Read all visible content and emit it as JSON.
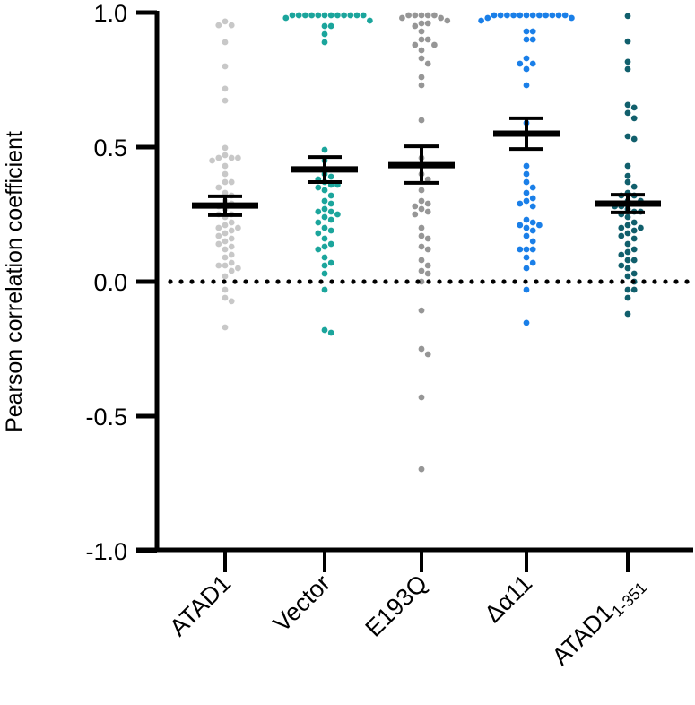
{
  "chart_data": {
    "type": "scatter",
    "subtype": "dot-plot-with-mean-and-error",
    "title": "",
    "xlabel": "",
    "ylabel": "Pearson correlation coefficient",
    "ylim": [
      -1.0,
      1.0
    ],
    "yticks": [
      -1.0,
      -0.5,
      0.0,
      0.5,
      1.0
    ],
    "ytick_labels": [
      "-1.0",
      "-0.5",
      "0.0",
      "0.5",
      "1.0"
    ],
    "reference_line": {
      "y": 0.0,
      "style": "dotted",
      "color": "#000000"
    },
    "grid": false,
    "legend": "none",
    "categories": [
      "ATAD1",
      "Vector",
      "E193Q",
      "Δα11",
      "ATAD1"
    ],
    "category_subscripts": [
      "",
      "",
      "",
      "",
      "1-351"
    ],
    "series": [
      {
        "name": "ATAD1",
        "color": "#c8c8c8",
        "mean": 0.283,
        "error": [
          0.247,
          0.317
        ],
        "values": [
          0.967,
          0.953,
          0.953,
          0.89,
          0.8,
          0.717,
          0.673,
          0.497,
          0.47,
          0.46,
          0.46,
          0.46,
          0.45,
          0.43,
          0.4,
          0.37,
          0.37,
          0.35,
          0.33,
          0.32,
          0.3,
          0.29,
          0.28,
          0.27,
          0.25,
          0.25,
          0.24,
          0.22,
          0.21,
          0.2,
          0.2,
          0.19,
          0.18,
          0.17,
          0.16,
          0.15,
          0.14,
          0.13,
          0.12,
          0.1,
          0.09,
          0.07,
          0.06,
          0.06,
          0.05,
          0.04,
          0.02,
          -0.03,
          -0.06,
          -0.073,
          -0.17
        ]
      },
      {
        "name": "Vector",
        "color": "#1ba59c",
        "mean": 0.417,
        "error": [
          0.37,
          0.463
        ],
        "values": [
          0.99,
          0.99,
          0.99,
          0.99,
          0.99,
          0.99,
          0.99,
          0.99,
          0.99,
          0.99,
          0.99,
          0.99,
          0.98,
          0.97,
          0.95,
          0.95,
          0.92,
          0.89,
          0.49,
          0.45,
          0.4,
          0.39,
          0.38,
          0.37,
          0.36,
          0.36,
          0.35,
          0.34,
          0.32,
          0.3,
          0.29,
          0.27,
          0.26,
          0.26,
          0.25,
          0.24,
          0.23,
          0.22,
          0.2,
          0.19,
          0.18,
          0.16,
          0.14,
          0.13,
          0.12,
          0.09,
          0.07,
          0.06,
          0.03,
          -0.03,
          -0.18,
          -0.19
        ]
      },
      {
        "name": "E193Q",
        "color": "#969696",
        "mean": 0.433,
        "error": [
          0.367,
          0.503
        ],
        "values": [
          0.99,
          0.99,
          0.99,
          0.99,
          0.99,
          0.98,
          0.98,
          0.97,
          0.96,
          0.96,
          0.95,
          0.93,
          0.9,
          0.9,
          0.88,
          0.88,
          0.86,
          0.83,
          0.81,
          0.76,
          0.73,
          0.6,
          0.46,
          0.4,
          0.38,
          0.34,
          0.3,
          0.29,
          0.28,
          0.27,
          0.26,
          0.25,
          0.2,
          0.17,
          0.16,
          0.13,
          0.12,
          0.08,
          0.06,
          0.04,
          0.03,
          0.0,
          -0.107,
          -0.25,
          -0.27,
          -0.43,
          -0.697
        ]
      },
      {
        "name": "Δα11",
        "color": "#1a7fe8",
        "mean": 0.55,
        "error": [
          0.493,
          0.607
        ],
        "values": [
          0.99,
          0.99,
          0.99,
          0.99,
          0.99,
          0.99,
          0.99,
          0.99,
          0.99,
          0.99,
          0.99,
          0.99,
          0.98,
          0.98,
          0.97,
          0.93,
          0.93,
          0.9,
          0.9,
          0.83,
          0.81,
          0.81,
          0.79,
          0.73,
          0.59,
          0.43,
          0.4,
          0.37,
          0.35,
          0.33,
          0.31,
          0.3,
          0.29,
          0.28,
          0.23,
          0.22,
          0.21,
          0.21,
          0.2,
          0.19,
          0.17,
          0.15,
          0.12,
          0.12,
          0.12,
          0.09,
          0.07,
          0.05,
          -0.03,
          -0.153
        ]
      },
      {
        "name": "ATAD1 1-351",
        "color": "#115f6c",
        "mean": 0.29,
        "error": [
          0.257,
          0.323
        ],
        "values": [
          0.987,
          0.893,
          0.817,
          0.79,
          0.657,
          0.647,
          0.627,
          0.607,
          0.54,
          0.53,
          0.43,
          0.393,
          0.37,
          0.353,
          0.33,
          0.32,
          0.32,
          0.3,
          0.3,
          0.29,
          0.28,
          0.28,
          0.27,
          0.26,
          0.26,
          0.25,
          0.24,
          0.22,
          0.21,
          0.2,
          0.2,
          0.19,
          0.18,
          0.17,
          0.16,
          0.14,
          0.12,
          0.11,
          0.1,
          0.08,
          0.08,
          0.06,
          0.05,
          0.03,
          0.02,
          0.0,
          -0.03,
          -0.03,
          -0.06,
          -0.12
        ]
      }
    ]
  }
}
